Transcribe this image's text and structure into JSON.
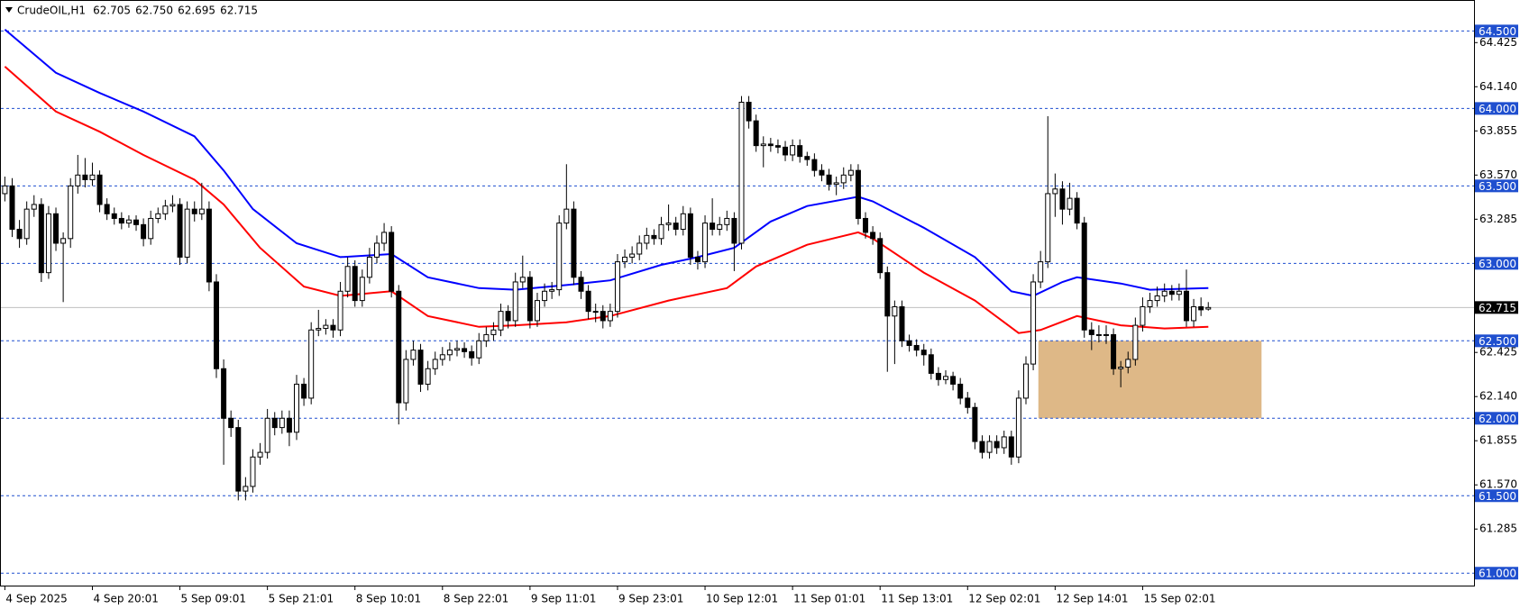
{
  "chart_data": {
    "type": "candlestick",
    "title": "CrudeOIL,H1",
    "header_values": [
      "62.705",
      "62.750",
      "62.695",
      "62.715"
    ],
    "up_color": "#ffffff",
    "down_color": "#000000",
    "wick_color": "#000000",
    "open": [
      63.45,
      63.5,
      63.22,
      63.16,
      63.35,
      63.38,
      62.94,
      63.32,
      63.13,
      63.16,
      63.5,
      63.57,
      63.54,
      63.57,
      63.38,
      63.32,
      63.29,
      63.26,
      63.28,
      63.25,
      63.16,
      63.29,
      63.32,
      63.37,
      63.38,
      63.04,
      63.35,
      63.32,
      63.35,
      62.88,
      62.32,
      62.0,
      61.94,
      61.53,
      61.56,
      61.75,
      61.78,
      62.0,
      61.94,
      62.0,
      61.91,
      62.22,
      62.13,
      62.57,
      62.58,
      62.6,
      62.57,
      62.82,
      62.98,
      62.76,
      62.91,
      63.04,
      63.13,
      63.2,
      62.82,
      62.1,
      62.38,
      62.44,
      62.22,
      62.32,
      62.38,
      62.41,
      62.44,
      62.45,
      62.43,
      62.39,
      62.5,
      62.54,
      62.57,
      62.69,
      62.63,
      62.88,
      62.91,
      62.63,
      62.76,
      62.82,
      62.83,
      63.26,
      63.35,
      62.91,
      62.82,
      62.69,
      62.69,
      62.63,
      62.69,
      63.01,
      63.04,
      63.06,
      63.13,
      63.18,
      63.16,
      63.25,
      63.26,
      63.22,
      63.32,
      63.04,
      63.01,
      63.26,
      63.22,
      63.25,
      63.29,
      63.13,
      64.04,
      63.92,
      63.76,
      63.77,
      63.76,
      63.75,
      63.7,
      63.76,
      63.69,
      63.67,
      63.6,
      63.57,
      63.51,
      63.52,
      63.57,
      63.6,
      63.29,
      63.2,
      63.16,
      62.94,
      62.66,
      62.72,
      62.5,
      62.47,
      62.44,
      62.41,
      62.29,
      62.25,
      62.27,
      62.22,
      62.13,
      62.07,
      61.85,
      61.78,
      61.85,
      61.81,
      61.88,
      61.75,
      62.13,
      62.35,
      62.88,
      63.01,
      63.45,
      63.48,
      63.35,
      63.42,
      63.26,
      62.57,
      62.54,
      62.54,
      62.54,
      62.32,
      62.33,
      62.38,
      62.6,
      62.72,
      62.76,
      62.79,
      62.82,
      62.8,
      62.82,
      62.63,
      62.72,
      62.705
    ],
    "high": [
      63.56,
      63.55,
      63.28,
      63.4,
      63.44,
      63.42,
      63.37,
      63.36,
      63.2,
      63.55,
      63.7,
      63.68,
      63.65,
      63.6,
      63.42,
      63.36,
      63.33,
      63.31,
      63.31,
      63.29,
      63.34,
      63.36,
      63.41,
      63.44,
      63.42,
      63.4,
      63.4,
      63.52,
      63.4,
      62.93,
      62.38,
      62.05,
      61.99,
      61.62,
      61.8,
      61.84,
      62.06,
      62.04,
      62.05,
      62.05,
      62.28,
      62.26,
      62.62,
      62.7,
      62.64,
      62.64,
      62.88,
      63.04,
      63.02,
      62.96,
      63.1,
      63.18,
      63.26,
      63.24,
      62.86,
      62.44,
      62.5,
      62.48,
      62.37,
      62.43,
      62.46,
      62.49,
      62.5,
      62.49,
      62.47,
      62.55,
      62.59,
      62.62,
      62.74,
      62.73,
      62.94,
      63.05,
      62.95,
      62.81,
      62.87,
      62.88,
      63.31,
      63.64,
      63.4,
      62.95,
      62.86,
      62.74,
      62.73,
      62.74,
      63.06,
      63.09,
      63.11,
      63.18,
      63.23,
      63.22,
      63.3,
      63.38,
      63.3,
      63.37,
      63.36,
      63.08,
      63.31,
      63.42,
      63.3,
      63.34,
      63.33,
      64.08,
      64.08,
      63.96,
      63.82,
      63.81,
      63.8,
      63.79,
      63.8,
      63.8,
      63.72,
      63.71,
      63.64,
      63.61,
      63.56,
      63.62,
      63.64,
      63.64,
      63.33,
      63.24,
      63.2,
      62.98,
      62.76,
      62.76,
      62.54,
      62.51,
      62.48,
      62.45,
      62.33,
      62.31,
      62.3,
      62.26,
      62.17,
      62.1,
      61.89,
      61.89,
      61.89,
      61.92,
      61.92,
      62.18,
      62.4,
      62.93,
      63.08,
      63.95,
      63.58,
      63.53,
      63.52,
      63.46,
      63.3,
      62.62,
      62.6,
      62.6,
      62.58,
      62.37,
      62.43,
      62.65,
      62.78,
      62.81,
      62.85,
      62.87,
      62.86,
      62.87,
      62.96,
      62.77,
      62.78,
      62.75
    ],
    "low": [
      63.4,
      63.17,
      63.1,
      63.12,
      63.3,
      62.88,
      62.9,
      63.08,
      62.75,
      63.1,
      63.45,
      63.49,
      63.5,
      63.33,
      63.28,
      63.25,
      63.22,
      63.23,
      63.21,
      63.11,
      63.12,
      63.26,
      63.28,
      63.33,
      62.99,
      63.0,
      63.27,
      63.28,
      62.82,
      62.26,
      61.7,
      61.88,
      61.47,
      61.47,
      61.52,
      61.7,
      61.74,
      61.89,
      61.9,
      61.82,
      61.86,
      62.08,
      62.09,
      62.53,
      62.54,
      62.52,
      62.53,
      62.78,
      62.72,
      62.72,
      62.87,
      63.0,
      63.08,
      62.78,
      61.96,
      62.05,
      62.34,
      62.17,
      62.18,
      62.28,
      62.34,
      62.37,
      62.4,
      62.39,
      62.34,
      62.35,
      62.46,
      62.5,
      62.53,
      62.58,
      62.59,
      62.84,
      62.58,
      62.59,
      62.72,
      62.77,
      62.79,
      63.22,
      62.86,
      62.77,
      62.64,
      62.62,
      62.58,
      62.59,
      62.65,
      62.97,
      63.0,
      63.02,
      63.09,
      63.12,
      63.12,
      63.21,
      63.18,
      63.18,
      62.99,
      62.96,
      62.97,
      63.18,
      63.18,
      63.21,
      62.95,
      63.09,
      63.87,
      63.72,
      63.62,
      63.72,
      63.71,
      63.66,
      63.66,
      63.65,
      63.63,
      63.56,
      63.53,
      63.47,
      63.44,
      63.48,
      63.53,
      63.25,
      63.16,
      63.12,
      62.9,
      62.3,
      62.35,
      62.46,
      62.43,
      62.4,
      62.34,
      62.25,
      62.21,
      62.22,
      62.18,
      62.09,
      62.03,
      61.8,
      61.74,
      61.74,
      61.77,
      61.77,
      61.7,
      61.71,
      62.09,
      62.31,
      62.84,
      62.97,
      63.3,
      63.25,
      63.31,
      63.22,
      62.52,
      62.44,
      62.49,
      62.48,
      62.28,
      62.2,
      62.29,
      62.34,
      62.56,
      62.68,
      62.72,
      62.75,
      62.76,
      62.76,
      62.59,
      62.59,
      62.66,
      62.695
    ],
    "close": [
      63.5,
      63.22,
      63.16,
      63.35,
      63.38,
      62.94,
      63.32,
      63.13,
      63.16,
      63.5,
      63.57,
      63.54,
      63.57,
      63.38,
      63.32,
      63.29,
      63.26,
      63.28,
      63.25,
      63.16,
      63.29,
      63.32,
      63.37,
      63.38,
      63.04,
      63.35,
      63.32,
      63.35,
      62.88,
      62.32,
      62.0,
      61.94,
      61.53,
      61.56,
      61.75,
      61.78,
      62.0,
      61.94,
      62.0,
      61.91,
      62.22,
      62.13,
      62.57,
      62.58,
      62.6,
      62.57,
      62.82,
      62.98,
      62.76,
      62.91,
      63.04,
      63.13,
      63.2,
      62.82,
      62.1,
      62.38,
      62.44,
      62.22,
      62.32,
      62.38,
      62.41,
      62.44,
      62.45,
      62.43,
      62.39,
      62.5,
      62.54,
      62.57,
      62.69,
      62.63,
      62.88,
      62.91,
      62.63,
      62.76,
      62.82,
      62.83,
      63.26,
      63.35,
      62.91,
      62.82,
      62.69,
      62.69,
      62.63,
      62.69,
      63.01,
      63.04,
      63.06,
      63.13,
      63.18,
      63.16,
      63.25,
      63.26,
      63.22,
      63.32,
      63.04,
      63.01,
      63.26,
      63.22,
      63.25,
      63.29,
      63.13,
      64.04,
      63.92,
      63.76,
      63.77,
      63.76,
      63.75,
      63.7,
      63.76,
      63.69,
      63.67,
      63.6,
      63.57,
      63.51,
      63.52,
      63.57,
      63.6,
      63.29,
      63.2,
      63.16,
      62.94,
      62.66,
      62.72,
      62.5,
      62.47,
      62.44,
      62.41,
      62.29,
      62.25,
      62.27,
      62.22,
      62.13,
      62.07,
      61.85,
      61.78,
      61.85,
      61.81,
      61.88,
      61.75,
      62.13,
      62.35,
      62.88,
      63.01,
      63.45,
      63.48,
      63.35,
      63.42,
      63.26,
      62.57,
      62.54,
      62.54,
      62.54,
      62.32,
      62.33,
      62.38,
      62.6,
      62.72,
      62.76,
      62.79,
      62.82,
      62.8,
      62.82,
      62.63,
      62.72,
      62.7,
      62.715
    ],
    "moving_averages": [
      {
        "color": "#0000ff",
        "x": [
          0,
          7,
          13,
          19,
          26,
          30,
          34,
          40,
          46,
          53,
          58,
          65,
          70,
          77,
          83,
          90,
          95,
          100,
          105,
          110,
          117,
          119,
          126,
          133,
          138,
          141,
          145,
          147,
          153,
          157,
          165
        ],
        "values": [
          64.51,
          64.23,
          64.1,
          63.98,
          63.82,
          63.6,
          63.35,
          63.13,
          63.04,
          63.06,
          62.91,
          62.84,
          62.83,
          62.86,
          62.89,
          62.99,
          63.04,
          63.1,
          63.27,
          63.37,
          63.43,
          63.4,
          63.23,
          63.04,
          62.82,
          62.79,
          62.88,
          62.91,
          62.87,
          62.83,
          62.84
        ]
      },
      {
        "color": "#ff0000",
        "x": [
          0,
          7,
          13,
          19,
          26,
          30,
          35,
          41,
          46,
          53,
          58,
          65,
          70,
          77,
          83,
          91,
          99,
          103,
          110,
          117,
          119,
          126,
          133,
          139,
          142,
          147,
          153,
          159,
          165
        ],
        "values": [
          64.27,
          63.98,
          63.85,
          63.7,
          63.54,
          63.38,
          63.1,
          62.85,
          62.79,
          62.82,
          62.66,
          62.59,
          62.6,
          62.62,
          62.66,
          62.76,
          62.84,
          62.98,
          63.12,
          63.2,
          63.16,
          62.94,
          62.76,
          62.55,
          62.57,
          62.66,
          62.6,
          62.58,
          62.59
        ]
      }
    ],
    "zone": {
      "color": "#deb887",
      "x": [
        141.7,
        172.3
      ],
      "y": [
        62.0,
        62.5
      ]
    },
    "ylim": [
      60.92,
      64.7
    ],
    "yticks": [
      {
        "value": 64.425,
        "label": "64.425"
      },
      {
        "value": 64.14,
        "label": "64.140"
      },
      {
        "value": 63.855,
        "label": "63.855"
      },
      {
        "value": 63.57,
        "label": "63.570"
      },
      {
        "value": 63.285,
        "label": "63.285"
      },
      {
        "value": 62.425,
        "label": "62.425"
      },
      {
        "value": 62.14,
        "label": "62.140"
      },
      {
        "value": 61.855,
        "label": "61.855"
      },
      {
        "value": 61.57,
        "label": "61.570"
      },
      {
        "value": 61.285,
        "label": "61.285"
      }
    ],
    "levels": [
      {
        "value": 64.5,
        "label": "64.500"
      },
      {
        "value": 64.0,
        "label": "64.000"
      },
      {
        "value": 63.5,
        "label": "63.500"
      },
      {
        "value": 63.0,
        "label": "63.000"
      },
      {
        "value": 62.5,
        "label": "62.500"
      },
      {
        "value": 62.0,
        "label": "62.000"
      },
      {
        "value": 61.5,
        "label": "61.500"
      },
      {
        "value": 61.0,
        "label": "61.000"
      }
    ],
    "level_color": "#1f4fcf",
    "current_price": {
      "value": 62.715,
      "label": "62.715"
    },
    "xticks": [
      {
        "value": 0,
        "label": "4 Sep 2025"
      },
      {
        "value": 12,
        "label": "4 Sep 20:01"
      },
      {
        "value": 24,
        "label": "5 Sep 09:01"
      },
      {
        "value": 36,
        "label": "5 Sep 21:01"
      },
      {
        "value": 48,
        "label": "8 Sep 10:01"
      },
      {
        "value": 60,
        "label": "8 Sep 22:01"
      },
      {
        "value": 72,
        "label": "9 Sep 11:01"
      },
      {
        "value": 84,
        "label": "9 Sep 23:01"
      },
      {
        "value": 96,
        "label": "10 Sep 12:01"
      },
      {
        "value": 108,
        "label": "11 Sep 01:01"
      },
      {
        "value": 120,
        "label": "11 Sep 13:01"
      },
      {
        "value": 132,
        "label": "12 Sep 02:01"
      },
      {
        "value": 144,
        "label": "12 Sep 14:01"
      },
      {
        "value": 156,
        "label": "15 Sep 02:01"
      }
    ]
  }
}
